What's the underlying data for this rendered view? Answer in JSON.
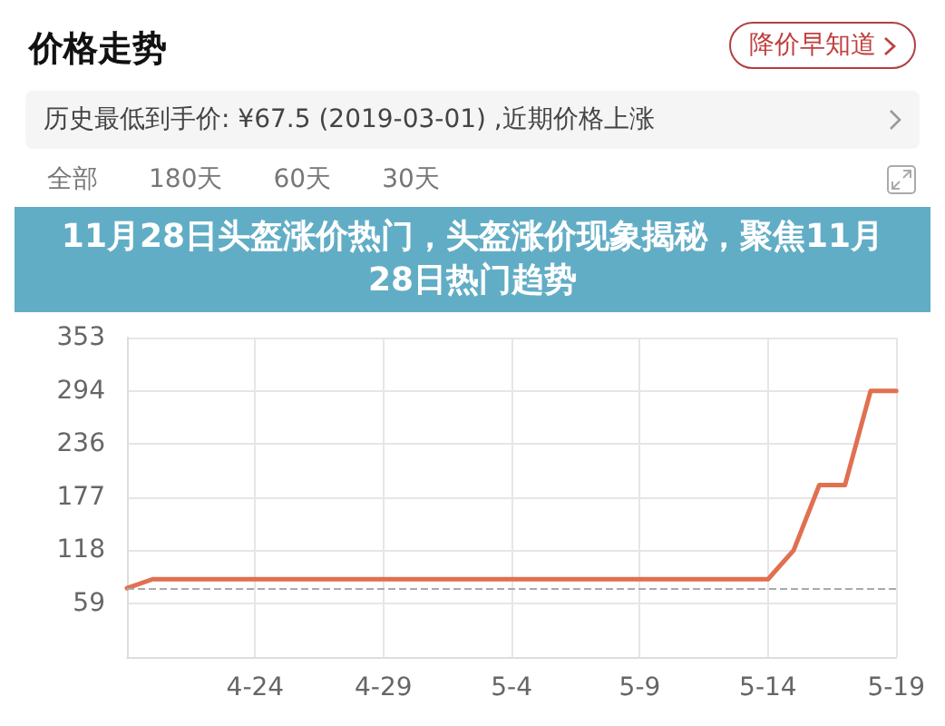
{
  "chart_data": {
    "type": "line",
    "title": "11月28日头盔涨价热门，头盔涨价现象揭秘，聚焦11月28日热门趋势",
    "subtitle": "价格走势",
    "annotations": [
      "降价早知道",
      "历史最低到手价: ¥67.5 (2019-03-01) ,近期价格上涨",
      "全部",
      "180天",
      "60天",
      "30天"
    ],
    "series": [
      {
        "color": "#e07050",
        "x": [
          "--04-19",
          "--04-20",
          "--05-14",
          "--05-15",
          "--05-16",
          "--05-17",
          "--05-18",
          "--05-19"
        ],
        "values": [
          76,
          86,
          86,
          118,
          190,
          190,
          294,
          294
        ]
      }
    ],
    "xlim": [
      "--04-19",
      "--05-19"
    ],
    "xticks": [
      {
        "value": "--04-24",
        "label": "4-24"
      },
      {
        "value": "--04-29",
        "label": "4-29"
      },
      {
        "value": "--05-04",
        "label": "5-4"
      },
      {
        "value": "--05-09",
        "label": "5-9"
      },
      {
        "value": "--05-14",
        "label": "5-14"
      },
      {
        "value": "--05-19",
        "label": "5-19"
      }
    ],
    "ylim": [
      0,
      353
    ],
    "yticks": [
      59,
      118,
      177,
      236,
      294,
      353
    ],
    "ref_lines": [
      {
        "axis": "y",
        "value": 76,
        "color": "#aaaaaa",
        "line_style": "dashed"
      }
    ],
    "grid": true,
    "marker": "none",
    "line_style": "solid"
  }
}
